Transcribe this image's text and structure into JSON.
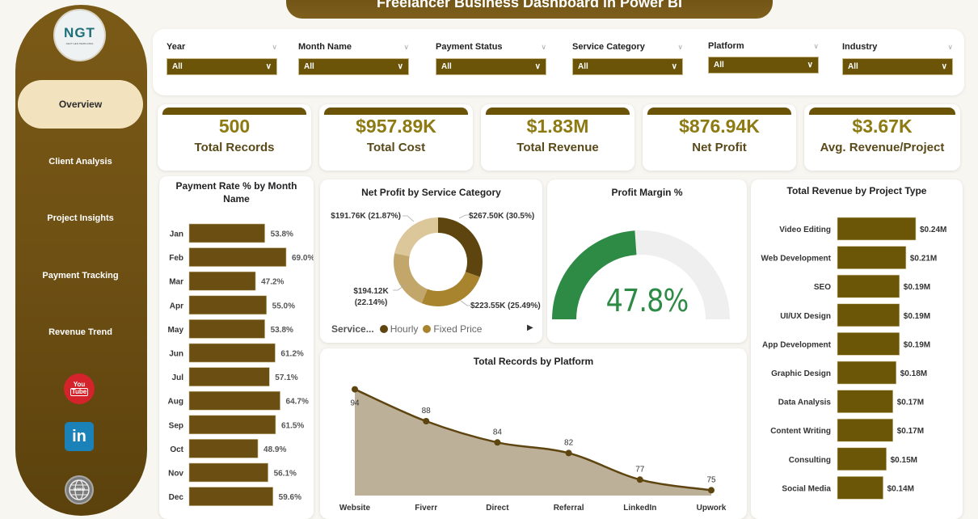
{
  "header": {
    "title": "Freelancer Business Dashboard in Power BI"
  },
  "logo": {
    "text": "NGT",
    "subtext": "NEXT GEN TEMPLATES"
  },
  "sidebar": {
    "items": [
      {
        "label": "Overview",
        "active": true
      },
      {
        "label": "Client Analysis",
        "active": false
      },
      {
        "label": "Project Insights",
        "active": false
      },
      {
        "label": "Payment Tracking",
        "active": false
      },
      {
        "label": "Revenue Trend",
        "active": false
      }
    ],
    "social": [
      {
        "icon": "youtube-icon",
        "top": "You",
        "bottom": "Tube"
      },
      {
        "icon": "linkedin-icon",
        "text": "in"
      },
      {
        "icon": "globe-icon",
        "text": "www"
      }
    ]
  },
  "filters": [
    {
      "label": "Year",
      "value": "All"
    },
    {
      "label": "Month Name",
      "value": "All"
    },
    {
      "label": "Payment Status",
      "value": "All"
    },
    {
      "label": "Service Category",
      "value": "All"
    },
    {
      "label": "Platform",
      "value": "All"
    },
    {
      "label": "Industry",
      "value": "All"
    }
  ],
  "kpis": [
    {
      "value": "500",
      "label": "Total Records"
    },
    {
      "value": "$957.89K",
      "label": "Total Cost"
    },
    {
      "value": "$1.83M",
      "label": "Total Revenue"
    },
    {
      "value": "$876.94K",
      "label": "Net Profit"
    },
    {
      "value": "$3.67K",
      "label": "Avg. Revenue/Project"
    }
  ],
  "colors": {
    "accent": "#6b5308",
    "bar": "#6b4f12",
    "revenue_bar": "#6b5608",
    "gauge": "#2e8b46",
    "gauge_bg": "#f0efef",
    "area": "#bcb098",
    "line": "#5e4510"
  },
  "chart_data": [
    {
      "type": "bar",
      "title": "Payment Rate % by Month Name",
      "categories": [
        "Jan",
        "Feb",
        "Mar",
        "Apr",
        "May",
        "Jun",
        "Jul",
        "Aug",
        "Sep",
        "Oct",
        "Nov",
        "Dec"
      ],
      "values": [
        53.8,
        69.0,
        47.2,
        55.0,
        53.8,
        61.2,
        57.1,
        64.7,
        61.5,
        48.9,
        56.1,
        59.6
      ],
      "labels": [
        "53.8%",
        "69.0%",
        "47.2%",
        "55.0%",
        "53.8%",
        "61.2%",
        "57.1%",
        "64.7%",
        "61.5%",
        "48.9%",
        "56.1%",
        "59.6%"
      ],
      "orientation": "horizontal"
    },
    {
      "type": "pie",
      "title": "Net Profit by Service Category",
      "legend_title": "Service...",
      "legend": [
        "Hourly",
        "Fixed Price"
      ],
      "slices": [
        {
          "value": 267.5,
          "label": "$267.50K (30.5%)",
          "color": "#5e4510"
        },
        {
          "value": 223.55,
          "label": "$223.55K (25.49%)",
          "color": "#a8842e"
        },
        {
          "value": 194.12,
          "label_line1": "$194.12K",
          "label_line2": "(22.14%)",
          "color": "#c2a66a"
        },
        {
          "value": 191.76,
          "label": "$191.76K (21.87%)",
          "color": "#dbc79a"
        }
      ]
    },
    {
      "type": "gauge",
      "title": "Profit Margin %",
      "value": 47.8,
      "display": "47.8%",
      "min": 0,
      "max": 100
    },
    {
      "type": "bar",
      "title": "Total Revenue by Project Type",
      "categories": [
        "Video Editing",
        "Web Development",
        "SEO",
        "UI/UX Design",
        "App Development",
        "Graphic Design",
        "Data Analysis",
        "Content Writing",
        "Consulting",
        "Social Media"
      ],
      "values": [
        0.24,
        0.21,
        0.19,
        0.19,
        0.19,
        0.18,
        0.17,
        0.17,
        0.15,
        0.14
      ],
      "labels": [
        "$0.24M",
        "$0.21M",
        "$0.19M",
        "$0.19M",
        "$0.19M",
        "$0.18M",
        "$0.17M",
        "$0.17M",
        "$0.15M",
        "$0.14M"
      ],
      "orientation": "horizontal"
    },
    {
      "type": "area",
      "title": "Total Records by Platform",
      "categories": [
        "Website",
        "Fiverr",
        "Direct",
        "Referral",
        "LinkedIn",
        "Upwork"
      ],
      "values": [
        94,
        88,
        84,
        82,
        77,
        75
      ],
      "ylim": [
        74,
        95
      ]
    }
  ]
}
